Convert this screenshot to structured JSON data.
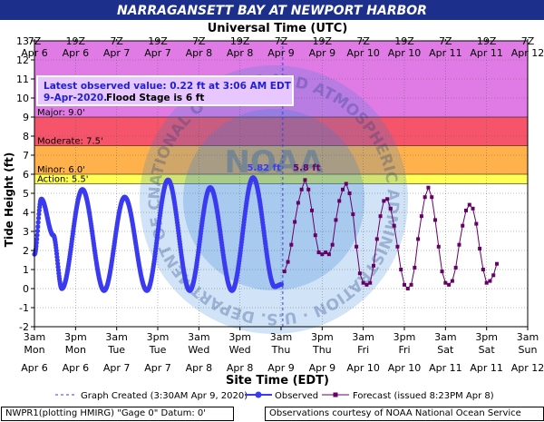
{
  "title": "NARRAGANSETT BAY AT NEWPORT HARBOR",
  "top_axis_title": "Universal Time (UTC)",
  "bottom_axis_title": "Site Time (EDT)",
  "y_axis_title": "Tide Height (ft)",
  "info_box": {
    "line1": "Latest observed value:  0.22  ft at 3:06 AM EDT",
    "line2_date": "9-Apr-2020.",
    "line2_flood": "Flood Stage is 6 ft"
  },
  "legend": {
    "graph_created": "Graph Created (3:30AM Apr 9, 2020)",
    "observed": "Observed",
    "forecast": "Forecast (issued 8:23PM Apr 8)"
  },
  "footer": {
    "left": "NWPR1(plotting HMIRG) \"Gage 0\" Datum:  0'",
    "right": "Observations courtesy of NOAA National Ocean Service"
  },
  "watermark": {
    "seal": "NOAA",
    "ring_text": "NATIONAL OCEANIC AND ATMOSPHERIC ADMINISTRATION · U.S. DEPARTMENT OF COMMERCE ·"
  },
  "colors": {
    "title_bg": "#1c2f8a",
    "major": "#e07be6",
    "moderate": "#f5546a",
    "minor": "#ffb24b",
    "action": "#ffff55",
    "observed": "#3a3af0",
    "forecast": "#660066",
    "seal": "#2f7fd6"
  },
  "chart_data": {
    "type": "line",
    "y_range": [
      -2,
      13
    ],
    "y_ticks": [
      -2,
      -1,
      0,
      1,
      2,
      3,
      4,
      5,
      6,
      7,
      8,
      9,
      10,
      11,
      12,
      13
    ],
    "x_range_hours_edt": [
      "2020-04-06 03:00",
      "2020-04-12 03:00"
    ],
    "top_ticks": [
      {
        "time": "7Z",
        "date": "Apr 6"
      },
      {
        "time": "19Z",
        "date": "Apr 6"
      },
      {
        "time": "7Z",
        "date": "Apr 7"
      },
      {
        "time": "19Z",
        "date": "Apr 7"
      },
      {
        "time": "7Z",
        "date": "Apr 8"
      },
      {
        "time": "19Z",
        "date": "Apr 8"
      },
      {
        "time": "7Z",
        "date": "Apr 9"
      },
      {
        "time": "19Z",
        "date": "Apr 9"
      },
      {
        "time": "7Z",
        "date": "Apr 10"
      },
      {
        "time": "19Z",
        "date": "Apr 10"
      },
      {
        "time": "7Z",
        "date": "Apr 11"
      },
      {
        "time": "19Z",
        "date": "Apr 11"
      },
      {
        "time": "7Z",
        "date": "Apr 12"
      }
    ],
    "bottom_ticks": [
      {
        "time": "3am",
        "day": "Mon",
        "date": "Apr 6"
      },
      {
        "time": "3pm",
        "day": "Mon",
        "date": "Apr 6"
      },
      {
        "time": "3am",
        "day": "Tue",
        "date": "Apr 7"
      },
      {
        "time": "3pm",
        "day": "Tue",
        "date": "Apr 7"
      },
      {
        "time": "3am",
        "day": "Wed",
        "date": "Apr 8"
      },
      {
        "time": "3pm",
        "day": "Wed",
        "date": "Apr 8"
      },
      {
        "time": "3am",
        "day": "Thu",
        "date": "Apr 9"
      },
      {
        "time": "3pm",
        "day": "Thu",
        "date": "Apr 9"
      },
      {
        "time": "3am",
        "day": "Fri",
        "date": "Apr 10"
      },
      {
        "time": "3pm",
        "day": "Fri",
        "date": "Apr 10"
      },
      {
        "time": "3am",
        "day": "Sat",
        "date": "Apr 11"
      },
      {
        "time": "3pm",
        "day": "Sat",
        "date": "Apr 11"
      },
      {
        "time": "3am",
        "day": "Sun",
        "date": "Apr 12"
      }
    ],
    "flood_categories": [
      {
        "name": "Action",
        "label": "Action:  5.5'",
        "from": 5.5,
        "to": 6.0
      },
      {
        "name": "Minor",
        "label": "Minor:  6.0'",
        "from": 6.0,
        "to": 7.5
      },
      {
        "name": "Moderate",
        "label": "Moderate:  7.5'",
        "from": 7.5,
        "to": 9.0
      },
      {
        "name": "Major",
        "label": "Major:  9.0'",
        "from": 9.0,
        "to": 13.0
      }
    ],
    "current_time_edt": "2020-04-09 03:30",
    "peak_labels": [
      {
        "label": "5.82  ft",
        "series": "Observed",
        "time_edt": "2020-04-08 22:00",
        "value": 5.82
      },
      {
        "label": "5.8  ft",
        "series": "Forecast",
        "time_edt": "2020-04-09 10:30",
        "value": 5.8
      }
    ],
    "series": [
      {
        "name": "Observed",
        "interval_hours": 0.1,
        "points": [
          [
            "2020-04-06 03:00",
            1.8
          ],
          [
            "2020-04-06 05:00",
            4.7
          ],
          [
            "2020-04-06 08:30",
            2.8
          ],
          [
            "2020-04-06 11:00",
            0.0
          ],
          [
            "2020-04-06 17:00",
            5.2
          ],
          [
            "2020-04-06 23:20",
            -0.1
          ],
          [
            "2020-04-07 05:20",
            4.8
          ],
          [
            "2020-04-07 11:50",
            -0.1
          ],
          [
            "2020-04-07 18:00",
            5.7
          ],
          [
            "2020-04-08 00:20",
            -0.1
          ],
          [
            "2020-04-08 06:20",
            5.3
          ],
          [
            "2020-04-08 12:40",
            -0.1
          ],
          [
            "2020-04-08 18:50",
            5.82
          ],
          [
            "2020-04-09 01:10",
            0.1
          ],
          [
            "2020-04-09 03:06",
            0.22
          ]
        ]
      },
      {
        "name": "Forecast",
        "interval_hours": 1,
        "points": [
          [
            "2020-04-09 04:00",
            0.9
          ],
          [
            "2020-04-09 05:00",
            1.4
          ],
          [
            "2020-04-09 06:00",
            2.3
          ],
          [
            "2020-04-09 07:00",
            3.5
          ],
          [
            "2020-04-09 08:00",
            4.5
          ],
          [
            "2020-04-09 09:00",
            5.2
          ],
          [
            "2020-04-09 10:00",
            5.7
          ],
          [
            "2020-04-09 11:00",
            5.2
          ],
          [
            "2020-04-09 12:00",
            4.1
          ],
          [
            "2020-04-09 13:00",
            2.8
          ],
          [
            "2020-04-09 14:00",
            1.9
          ],
          [
            "2020-04-09 15:00",
            1.8
          ],
          [
            "2020-04-09 16:00",
            1.9
          ],
          [
            "2020-04-09 17:00",
            1.8
          ],
          [
            "2020-04-09 18:00",
            2.3
          ],
          [
            "2020-04-09 19:00",
            3.6
          ],
          [
            "2020-04-09 20:00",
            4.6
          ],
          [
            "2020-04-09 21:00",
            5.2
          ],
          [
            "2020-04-09 22:00",
            5.5
          ],
          [
            "2020-04-09 23:00",
            5.0
          ],
          [
            "2020-04-10 00:00",
            3.9
          ],
          [
            "2020-04-10 01:00",
            2.2
          ],
          [
            "2020-04-10 02:00",
            0.8
          ],
          [
            "2020-04-10 03:00",
            0.3
          ],
          [
            "2020-04-10 04:00",
            0.2
          ],
          [
            "2020-04-10 05:00",
            0.3
          ],
          [
            "2020-04-10 06:00",
            1.2
          ],
          [
            "2020-04-10 07:00",
            2.6
          ],
          [
            "2020-04-10 08:00",
            3.8
          ],
          [
            "2020-04-10 09:00",
            4.6
          ],
          [
            "2020-04-10 10:00",
            4.7
          ],
          [
            "2020-04-10 11:00",
            4.2
          ],
          [
            "2020-04-10 12:00",
            3.3
          ],
          [
            "2020-04-10 13:00",
            2.2
          ],
          [
            "2020-04-10 14:00",
            1.0
          ],
          [
            "2020-04-10 15:00",
            0.2
          ],
          [
            "2020-04-10 16:00",
            0.0
          ],
          [
            "2020-04-10 17:00",
            0.2
          ],
          [
            "2020-04-10 18:00",
            1.1
          ],
          [
            "2020-04-10 19:00",
            2.6
          ],
          [
            "2020-04-10 20:00",
            3.8
          ],
          [
            "2020-04-10 21:00",
            4.8
          ],
          [
            "2020-04-10 22:00",
            5.3
          ],
          [
            "2020-04-10 23:00",
            4.8
          ],
          [
            "2020-04-11 00:00",
            3.6
          ],
          [
            "2020-04-11 01:00",
            2.2
          ],
          [
            "2020-04-11 02:00",
            0.9
          ],
          [
            "2020-04-11 03:00",
            0.3
          ],
          [
            "2020-04-11 04:00",
            0.2
          ],
          [
            "2020-04-11 05:00",
            0.4
          ],
          [
            "2020-04-11 06:00",
            1.1
          ],
          [
            "2020-04-11 07:00",
            2.3
          ],
          [
            "2020-04-11 08:00",
            3.3
          ],
          [
            "2020-04-11 09:00",
            4.1
          ],
          [
            "2020-04-11 10:00",
            4.4
          ],
          [
            "2020-04-11 11:00",
            4.2
          ],
          [
            "2020-04-11 12:00",
            3.4
          ],
          [
            "2020-04-11 13:00",
            2.1
          ],
          [
            "2020-04-11 14:00",
            1.0
          ],
          [
            "2020-04-11 15:00",
            0.3
          ],
          [
            "2020-04-11 16:00",
            0.4
          ],
          [
            "2020-04-11 17:00",
            0.7
          ],
          [
            "2020-04-11 18:00",
            1.3
          ]
        ]
      }
    ]
  }
}
